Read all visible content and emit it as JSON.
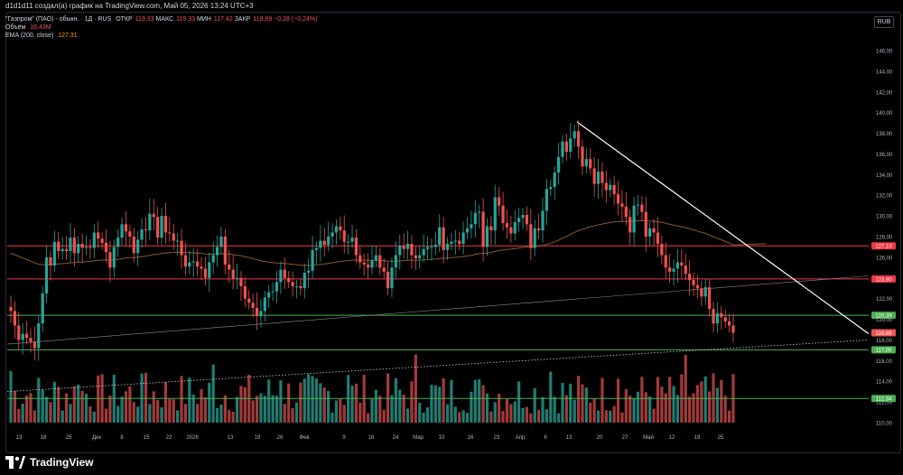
{
  "caption": "d1d1d11 создал(а) график на TradingView.com, Май 05, 2026 13:24 UTC+3",
  "legend": {
    "symbol": "\"Газпром\" (ПАО) - обыкн. · 1Д · RUS",
    "open_label": "ОТКР",
    "open_value": "119,33",
    "high_label": "МАКС",
    "high_value": "119,33",
    "low_label": "МИН",
    "low_value": "117,42",
    "close_label": "ЗАКР",
    "close_value": "118,69",
    "change_value": "−0,28 (−0,24%)",
    "volume_label": "Объём",
    "volume_value": "16,43M",
    "ema_label": "EMA (200, close)",
    "ema_value": "127,31"
  },
  "currency_button": "RUB",
  "brand": "TradingView",
  "colors": {
    "up": "#26a69a",
    "down": "#ef5350",
    "volume_up": "#1f7d72",
    "volume_down": "#a33a3a",
    "resistance": "#f23645",
    "support": "#4caf50",
    "ema": "#8a5a2b",
    "trend": "#ffffff",
    "axis_text": "#b2b5be"
  },
  "chart_data": {
    "type": "candlestick",
    "y_axis": {
      "min": 110,
      "max": 146,
      "ticks": [
        "110,00",
        "112,00",
        "114,00",
        "116,00",
        "118,00",
        "120,00",
        "122,00",
        "124,00",
        "126,00",
        "128,00",
        "130,00",
        "132,00",
        "134,00",
        "136,00",
        "138,00",
        "140,00",
        "142,00",
        "144,00",
        "146,00"
      ]
    },
    "x_ticks": [
      "13",
      "18",
      "25",
      "Дек",
      "8",
      "15",
      "22",
      "2026",
      "13",
      "19",
      "26",
      "Фев",
      "9",
      "16",
      "24",
      "Мар",
      "10",
      "16",
      "23",
      "Апр",
      "6",
      "13",
      "20",
      "27",
      "Май",
      "12",
      "19",
      "25"
    ],
    "levels": [
      {
        "value": 127.1,
        "label": "127,10",
        "kind": "resistance"
      },
      {
        "value": 123.9,
        "label": "123,90",
        "kind": "resistance"
      },
      {
        "value": 120.39,
        "label": "120,39",
        "kind": "support"
      },
      {
        "value": 118.69,
        "label": "118,69",
        "kind": "last_price"
      },
      {
        "value": 117.05,
        "label": "117,05",
        "kind": "support"
      },
      {
        "value": 112.34,
        "label": "112,34",
        "kind": "support"
      }
    ],
    "closes": [
      120.8,
      119.4,
      118.0,
      118.6,
      118.2,
      117.8,
      117.2,
      119.6,
      122.5,
      126.0,
      125.2,
      127.5,
      126.6,
      126.8,
      126.6,
      127.9,
      126.4,
      127.3,
      126.9,
      127.0,
      126.9,
      128.4,
      127.8,
      127.4,
      126.5,
      125.0,
      127.0,
      127.9,
      129.2,
      128.5,
      128.0,
      126.4,
      127.7,
      128.7,
      128.6,
      130.2,
      129.9,
      127.9,
      130.0,
      128.4,
      128.3,
      127.6,
      127.6,
      126.2,
      125.1,
      125.5,
      125.6,
      125.1,
      124.9,
      124.0,
      125.5,
      126.2,
      127.0,
      128.0,
      125.3,
      124.8,
      123.9,
      124.0,
      123.2,
      122.0,
      121.6,
      121.1,
      120.3,
      120.8,
      122.1,
      122.6,
      122.7,
      123.6,
      124.8,
      124.0,
      123.6,
      123.2,
      123.2,
      123.0,
      124.5,
      124.7,
      126.7,
      126.9,
      127.6,
      127.2,
      128.0,
      128.4,
      129.0,
      128.6,
      127.5,
      127.5,
      127.9,
      126.2,
      125.5,
      125.3,
      125.0,
      125.7,
      126.2,
      125.0,
      124.6,
      123.0,
      125.0,
      126.2,
      127.1,
      126.8,
      127.3,
      126.2,
      125.9,
      126.2,
      126.8,
      127.0,
      127.0,
      127.2,
      128.9,
      126.7,
      127.3,
      127.5,
      127.6,
      127.3,
      128.4,
      128.8,
      129.2,
      130.3,
      130.4,
      127.0,
      129.0,
      128.6,
      131.8,
      131.0,
      129.3,
      128.9,
      128.3,
      129.4,
      129.8,
      130.1,
      129.2,
      126.9,
      128.8,
      128.6,
      130.5,
      132.6,
      132.8,
      134.2,
      135.7,
      137.2,
      136.2,
      137.5,
      138.2,
      136.7,
      134.8,
      135.5,
      134.6,
      133.1,
      134.3,
      133.2,
      132.5,
      133.0,
      132.1,
      131.2,
      130.9,
      129.9,
      128.4,
      131.0,
      131.1,
      130.4,
      128.0,
      128.8,
      128.4,
      127.3,
      126.2,
      125.0,
      124.6,
      124.9,
      125.5,
      125.2,
      124.4,
      123.8,
      123.3,
      123.0,
      122.2,
      123.1,
      121.0,
      119.6,
      120.6,
      120.2,
      119.8,
      119.4,
      118.7
    ]
  }
}
